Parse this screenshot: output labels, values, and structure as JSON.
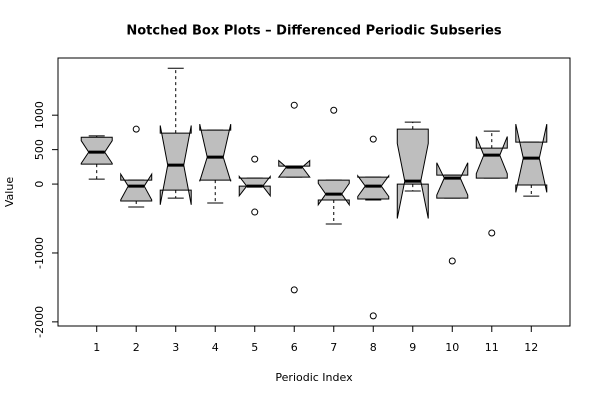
{
  "chart_data": {
    "type": "boxplot",
    "title": "Notched Box Plots – Differenced Periodic Subseries",
    "x_label": "Periodic Index",
    "y_label": "Value",
    "categories": [
      "1",
      "2",
      "3",
      "4",
      "5",
      "6",
      "7",
      "8",
      "9",
      "10",
      "11",
      "12"
    ],
    "color": "#bebebe",
    "boxes": [
      {
        "low": 72,
        "q1": 290,
        "median": 464,
        "q3": 680,
        "high": 700,
        "notch_low": 300,
        "notch_high": 630,
        "outliers": []
      },
      {
        "low": -333,
        "q1": -246,
        "median": -29,
        "q3": 58,
        "high": 58,
        "notch_low": -230,
        "notch_high": 145,
        "outliers": [
          797
        ]
      },
      {
        "low": -203,
        "q1": -87,
        "median": 275,
        "q3": 739,
        "high": 1681,
        "notch_low": -300,
        "notch_high": 850,
        "outliers": []
      },
      {
        "low": -275,
        "q1": 58,
        "median": 391,
        "q3": 783,
        "high": 783,
        "notch_low": 40,
        "notch_high": 870,
        "outliers": []
      },
      {
        "low": -29,
        "q1": -29,
        "median": -29,
        "q3": 87,
        "high": 87,
        "notch_low": -170,
        "notch_high": 110,
        "outliers": [
          362,
          -406
        ]
      },
      {
        "low": 101,
        "q1": 101,
        "median": 246,
        "q3": 261,
        "high": 261,
        "notch_low": 101,
        "notch_high": 340,
        "outliers": [
          1145,
          -1536
        ]
      },
      {
        "low": -580,
        "q1": -232,
        "median": -145,
        "q3": 58,
        "high": 58,
        "notch_low": -300,
        "notch_high": 10,
        "outliers": [
          1072
        ]
      },
      {
        "low": -232,
        "q1": -217,
        "median": -29,
        "q3": 101,
        "high": 101,
        "notch_low": -180,
        "notch_high": 120,
        "outliers": [
          652,
          -1913
        ]
      },
      {
        "low": -101,
        "q1": 0,
        "median": 43,
        "q3": 797,
        "high": 899,
        "notch_low": -500,
        "notch_high": 590,
        "outliers": []
      },
      {
        "low": -203,
        "q1": -203,
        "median": 87,
        "q3": 130,
        "high": 130,
        "notch_low": -160,
        "notch_high": 310,
        "outliers": [
          -1116
        ]
      },
      {
        "low": 87,
        "q1": 87,
        "median": 420,
        "q3": 522,
        "high": 768,
        "notch_low": 150,
        "notch_high": 690,
        "outliers": [
          -710
        ]
      },
      {
        "low": -174,
        "q1": -14,
        "median": 377,
        "q3": 609,
        "high": 609,
        "notch_low": -120,
        "notch_high": 870,
        "outliers": []
      }
    ],
    "xlim": [
      0.02,
      12.98
    ],
    "ylim": [
      -2060,
      1830
    ],
    "yticks": [
      -2000,
      -1000,
      0,
      500,
      1000
    ]
  }
}
